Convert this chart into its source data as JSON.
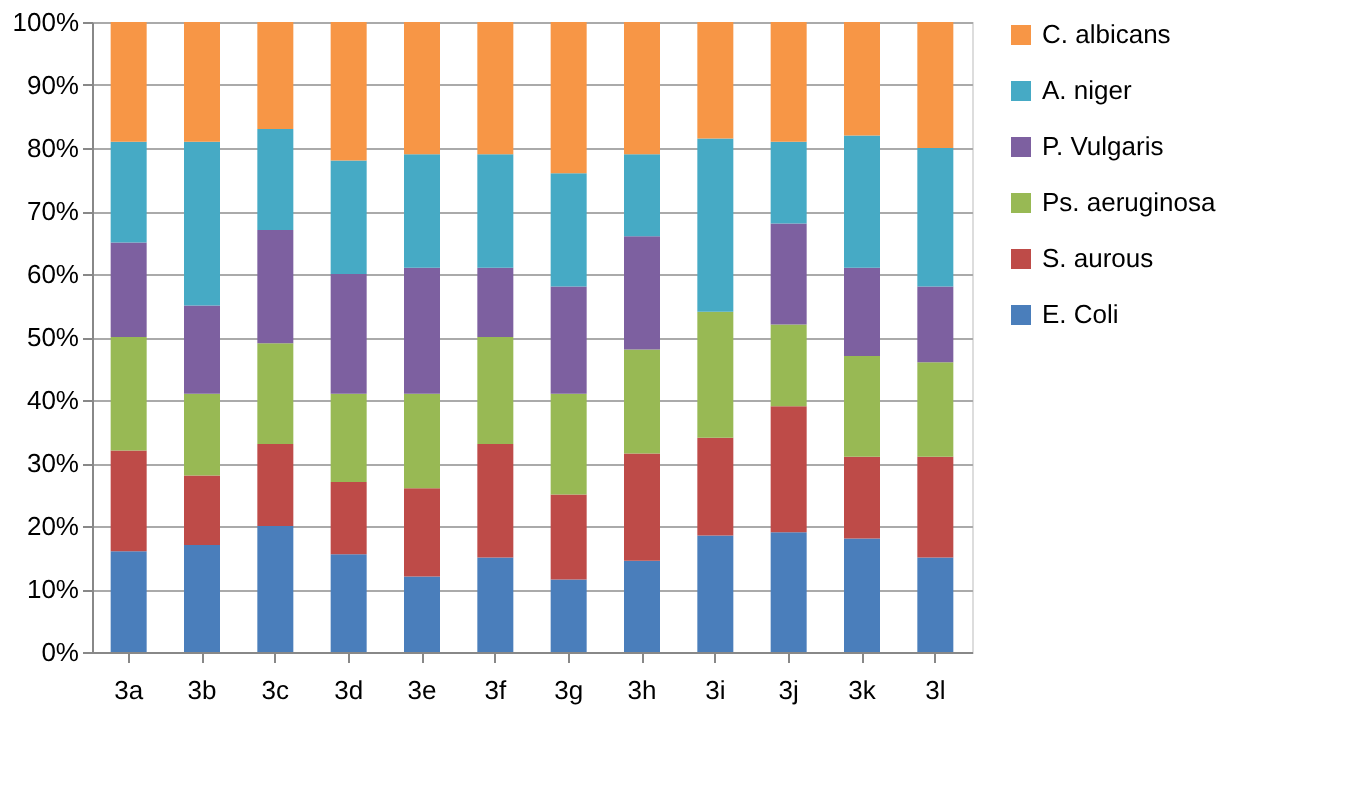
{
  "chart_data": {
    "type": "bar",
    "stacked": true,
    "categories": [
      "3a",
      "3b",
      "3c",
      "3d",
      "3e",
      "3f",
      "3g",
      "3h",
      "3i",
      "3j",
      "3k",
      "3l"
    ],
    "series": [
      {
        "name": "E. Coli",
        "color": "#4a7ebb",
        "values": [
          16,
          17,
          20,
          15.5,
          12,
          15,
          11.5,
          14.5,
          18.5,
          19,
          18,
          15
        ]
      },
      {
        "name": "S. aurous",
        "color": "#be4b48",
        "values": [
          16,
          11,
          13,
          11.5,
          14,
          18,
          13.5,
          17,
          15.5,
          20,
          13,
          16
        ]
      },
      {
        "name": "Ps. aeruginosa",
        "color": "#98b954",
        "values": [
          18,
          13,
          16,
          14,
          15,
          17,
          16,
          16.5,
          20,
          13,
          16,
          15
        ]
      },
      {
        "name": "P. Vulgaris",
        "color": "#7d60a0",
        "values": [
          15,
          14,
          18,
          19,
          20,
          11,
          17,
          18,
          0,
          16,
          14,
          12
        ]
      },
      {
        "name": "A. niger",
        "color": "#46aac5",
        "values": [
          16,
          26,
          16,
          18,
          18,
          18,
          18,
          13,
          27.5,
          13,
          21,
          22
        ]
      },
      {
        "name": "C. albicans",
        "color": "#f79646",
        "values": [
          19,
          19,
          17,
          22,
          21,
          21,
          24,
          21,
          18.5,
          19,
          18,
          20
        ]
      }
    ],
    "ylim": [
      0,
      100
    ],
    "yticks": [
      {
        "value": 0,
        "label": "0%"
      },
      {
        "value": 10,
        "label": "10%"
      },
      {
        "value": 20,
        "label": "20%"
      },
      {
        "value": 30,
        "label": "30%"
      },
      {
        "value": 40,
        "label": "40%"
      },
      {
        "value": 50,
        "label": "50%"
      },
      {
        "value": 60,
        "label": "60%"
      },
      {
        "value": 70,
        "label": "70%"
      },
      {
        "value": 80,
        "label": "80%"
      },
      {
        "value": 90,
        "label": "90%"
      },
      {
        "value": 100,
        "label": "100%"
      }
    ],
    "grid": "y",
    "legend": "right"
  }
}
